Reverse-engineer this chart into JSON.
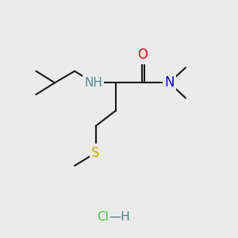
{
  "bg_color": "#ebebeb",
  "bond_color": "#1a1a1a",
  "bond_width": 1.5,
  "atom_colors": {
    "O": "#ff0000",
    "N": "#0000ff",
    "NH": "#4a9090",
    "S": "#ccaa00",
    "Cl": "#33cc33",
    "H_hcl": "#4a8080"
  },
  "font_size": 11
}
